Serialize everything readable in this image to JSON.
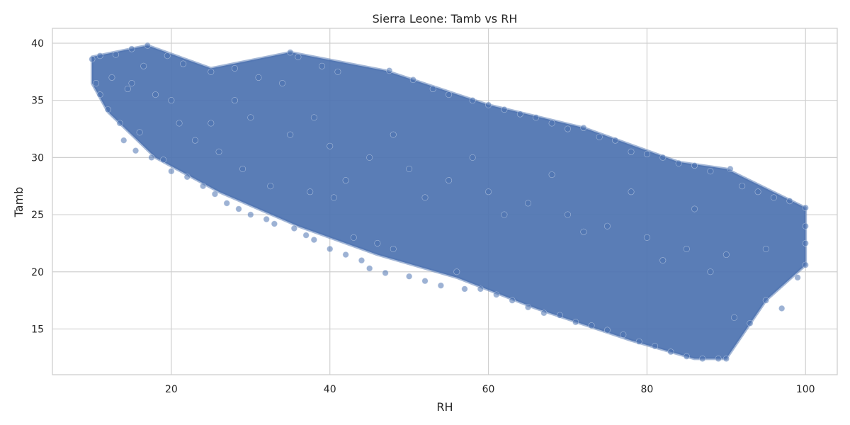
{
  "chart_data": {
    "type": "scatter",
    "title": "Sierra Leone: Tamb vs RH",
    "xlabel": "RH",
    "ylabel": "Tamb",
    "xlim": [
      5,
      104
    ],
    "ylim": [
      11,
      41.3
    ],
    "xticks": [
      20,
      40,
      60,
      80,
      100
    ],
    "yticks": [
      15,
      20,
      25,
      30,
      35,
      40
    ],
    "grid": true,
    "legend": "none",
    "point_color": "#4c72b0",
    "point_edge_color": "#dde6f2",
    "point_alpha": 0.55,
    "series": [
      {
        "values_note": "",
        "points": [
          [
            10,
            38.6
          ],
          [
            10.5,
            36.5
          ],
          [
            11,
            35.5
          ],
          [
            11,
            38.9
          ],
          [
            12,
            34.2
          ],
          [
            12.5,
            37.0
          ],
          [
            13,
            39.0
          ],
          [
            13.5,
            33.0
          ],
          [
            14,
            31.5
          ],
          [
            14.5,
            36.0
          ],
          [
            15,
            39.5
          ],
          [
            15.5,
            30.6
          ],
          [
            16,
            32.2
          ],
          [
            16.5,
            38.0
          ],
          [
            17,
            39.8
          ],
          [
            17.5,
            30.0
          ],
          [
            18,
            35.5
          ],
          [
            19,
            29.8
          ],
          [
            19.5,
            38.9
          ],
          [
            20,
            28.8
          ],
          [
            21,
            33.0
          ],
          [
            21.5,
            38.2
          ],
          [
            22,
            28.3
          ],
          [
            23,
            31.5
          ],
          [
            24,
            27.5
          ],
          [
            25,
            37.5
          ],
          [
            25.5,
            26.8
          ],
          [
            26,
            30.5
          ],
          [
            27,
            26.0
          ],
          [
            28,
            37.8
          ],
          [
            28.5,
            25.5
          ],
          [
            29,
            29.0
          ],
          [
            30,
            25.0
          ],
          [
            31,
            37.0
          ],
          [
            32,
            24.6
          ],
          [
            32.5,
            27.5
          ],
          [
            33,
            24.2
          ],
          [
            34,
            36.5
          ],
          [
            35,
            39.2
          ],
          [
            35.5,
            23.8
          ],
          [
            36,
            38.8
          ],
          [
            37,
            23.2
          ],
          [
            37.5,
            27.0
          ],
          [
            38,
            22.8
          ],
          [
            39,
            38.0
          ],
          [
            40,
            22.0
          ],
          [
            40.5,
            26.5
          ],
          [
            41,
            37.5
          ],
          [
            42,
            21.5
          ],
          [
            43,
            23.0
          ],
          [
            44,
            21.0
          ],
          [
            45,
            20.3
          ],
          [
            46,
            22.5
          ],
          [
            47,
            19.9
          ],
          [
            47.5,
            37.6
          ],
          [
            48,
            22.0
          ],
          [
            50,
            19.6
          ],
          [
            50.5,
            36.8
          ],
          [
            52,
            19.2
          ],
          [
            53,
            36.0
          ],
          [
            54,
            18.8
          ],
          [
            55,
            35.5
          ],
          [
            56,
            20.0
          ],
          [
            57,
            18.5
          ],
          [
            58,
            35.0
          ],
          [
            59,
            18.5
          ],
          [
            60,
            34.6
          ],
          [
            61,
            18.0
          ],
          [
            62,
            34.2
          ],
          [
            63,
            17.5
          ],
          [
            64,
            33.8
          ],
          [
            65,
            16.9
          ],
          [
            66,
            33.5
          ],
          [
            67,
            16.4
          ],
          [
            68,
            33.0
          ],
          [
            69,
            16.2
          ],
          [
            70,
            32.5
          ],
          [
            71,
            15.6
          ],
          [
            72,
            32.6
          ],
          [
            73,
            15.3
          ],
          [
            74,
            31.8
          ],
          [
            75,
            14.9
          ],
          [
            76,
            31.5
          ],
          [
            77,
            14.5
          ],
          [
            78,
            30.5
          ],
          [
            79,
            13.9
          ],
          [
            80,
            30.3
          ],
          [
            81,
            13.5
          ],
          [
            82,
            30.0
          ],
          [
            83,
            13.0
          ],
          [
            84,
            29.5
          ],
          [
            85,
            12.6
          ],
          [
            86,
            29.3
          ],
          [
            87,
            12.4
          ],
          [
            88,
            28.8
          ],
          [
            89,
            12.4
          ],
          [
            90,
            12.4
          ],
          [
            90.5,
            29.0
          ],
          [
            91,
            16.0
          ],
          [
            92,
            27.5
          ],
          [
            93,
            15.5
          ],
          [
            94,
            27.0
          ],
          [
            95,
            17.5
          ],
          [
            96,
            26.5
          ],
          [
            97,
            16.8
          ],
          [
            98,
            26.2
          ],
          [
            99,
            19.5
          ],
          [
            100,
            25.6
          ],
          [
            100,
            20.6
          ],
          [
            100,
            22.5
          ],
          [
            100,
            24.0
          ],
          [
            30,
            33.5
          ],
          [
            35,
            32.0
          ],
          [
            40,
            31.0
          ],
          [
            45,
            30.0
          ],
          [
            50,
            29.0
          ],
          [
            55,
            28.0
          ],
          [
            60,
            27.0
          ],
          [
            65,
            26.0
          ],
          [
            70,
            25.0
          ],
          [
            75,
            24.0
          ],
          [
            80,
            23.0
          ],
          [
            85,
            22.0
          ],
          [
            90,
            21.5
          ],
          [
            95,
            22.0
          ],
          [
            20,
            35.0
          ],
          [
            25,
            33.0
          ],
          [
            15,
            36.5
          ],
          [
            42,
            28.0
          ],
          [
            52,
            26.5
          ],
          [
            62,
            25.0
          ],
          [
            72,
            23.5
          ],
          [
            82,
            21.0
          ],
          [
            88,
            20.0
          ],
          [
            58,
            30.0
          ],
          [
            68,
            28.5
          ],
          [
            78,
            27.0
          ],
          [
            86,
            25.5
          ],
          [
            48,
            32.0
          ],
          [
            38,
            33.5
          ],
          [
            28,
            35.0
          ]
        ]
      }
    ]
  }
}
